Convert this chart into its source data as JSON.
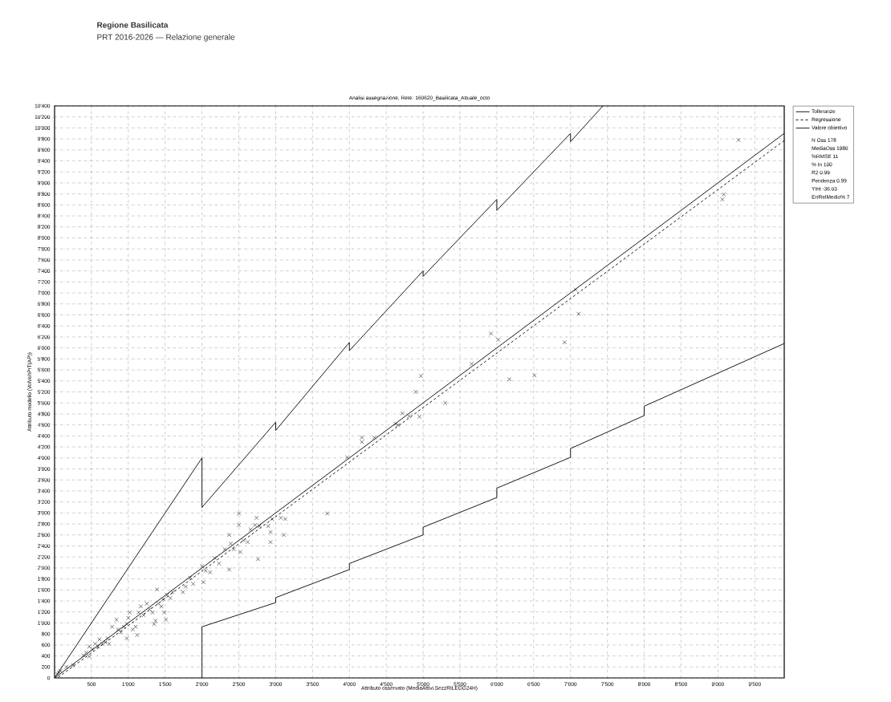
{
  "chart_data": {
    "type": "scatter",
    "title": "Analisi assegnazione, Rete: 160620_Basilicata_Attuale_octo",
    "xlabel": "Attributo osservato (MediaAttivi.SezzRILEGG24H)",
    "ylabel": "Attributo modello (VolVehPrT(AP))",
    "annotations": [
      "Regione Basilicata",
      "PRT 2016-2026 — Relazione generale",
      "N Oss 178",
      "MediaOss 1986",
      "%RMSE 11",
      "% In 100",
      "R2 0.99",
      "Pendenza 0.99",
      "YInt -36.03",
      "ErrRelMedio% 7"
    ],
    "xlim": [
      0,
      9900
    ],
    "ylim": [
      0,
      10400
    ],
    "xticks": [
      500,
      {
        "value": 1000,
        "label": "1'000"
      },
      {
        "value": 1500,
        "label": "1'500"
      },
      {
        "value": 2000,
        "label": "2'000"
      },
      {
        "value": 2500,
        "label": "2'500"
      },
      {
        "value": 3000,
        "label": "3'000"
      },
      {
        "value": 3500,
        "label": "3'500"
      },
      {
        "value": 4000,
        "label": "4'000"
      },
      {
        "value": 4500,
        "label": "4'500"
      },
      {
        "value": 5000,
        "label": "5'000"
      },
      {
        "value": 5500,
        "label": "5'500"
      },
      {
        "value": 6000,
        "label": "6'000"
      },
      {
        "value": 6500,
        "label": "6'500"
      },
      {
        "value": 7000,
        "label": "7'000"
      },
      {
        "value": 7500,
        "label": "7'500"
      },
      {
        "value": 8000,
        "label": "8'000"
      },
      {
        "value": 8500,
        "label": "8'500"
      },
      {
        "value": 9000,
        "label": "9'000"
      },
      {
        "value": 9500,
        "label": "9'500"
      }
    ],
    "yticks": [
      0,
      200,
      400,
      600,
      800,
      {
        "value": 1000,
        "label": "1'000"
      },
      {
        "value": 1200,
        "label": "1'200"
      },
      {
        "value": 1400,
        "label": "1'400"
      },
      {
        "value": 1600,
        "label": "1'600"
      },
      {
        "value": 1800,
        "label": "1'800"
      },
      {
        "value": 2000,
        "label": "2'000"
      },
      {
        "value": 2200,
        "label": "2'200"
      },
      {
        "value": 2400,
        "label": "2'400"
      },
      {
        "value": 2600,
        "label": "2'600"
      },
      {
        "value": 2800,
        "label": "2'800"
      },
      {
        "value": 3000,
        "label": "3'000"
      },
      {
        "value": 3200,
        "label": "3'200"
      },
      {
        "value": 3400,
        "label": "3'400"
      },
      {
        "value": 3600,
        "label": "3'600"
      },
      {
        "value": 3800,
        "label": "3'800"
      },
      {
        "value": 4000,
        "label": "4'000"
      },
      {
        "value": 4200,
        "label": "4'200"
      },
      {
        "value": 4400,
        "label": "4'400"
      },
      {
        "value": 4600,
        "label": "4'600"
      },
      {
        "value": 4800,
        "label": "4'800"
      },
      {
        "value": 5000,
        "label": "5'000"
      },
      {
        "value": 5200,
        "label": "5'200"
      },
      {
        "value": 5400,
        "label": "5'400"
      },
      {
        "value": 5600,
        "label": "5'600"
      },
      {
        "value": 5800,
        "label": "5'800"
      },
      {
        "value": 6000,
        "label": "6'000"
      },
      {
        "value": 6200,
        "label": "6'200"
      },
      {
        "value": 6400,
        "label": "6'400"
      },
      {
        "value": 6600,
        "label": "6'600"
      },
      {
        "value": 6800,
        "label": "6'800"
      },
      {
        "value": 7000,
        "label": "7'000"
      },
      {
        "value": 7200,
        "label": "7'200"
      },
      {
        "value": 7400,
        "label": "7'400"
      },
      {
        "value": 7600,
        "label": "7'600"
      },
      {
        "value": 7800,
        "label": "7'800"
      },
      {
        "value": 8000,
        "label": "8'000"
      },
      {
        "value": 8200,
        "label": "8'200"
      },
      {
        "value": 8400,
        "label": "8'400"
      },
      {
        "value": 8600,
        "label": "8'600"
      },
      {
        "value": 8800,
        "label": "8'800"
      },
      {
        "value": 9000,
        "label": "9'000"
      },
      {
        "value": 9200,
        "label": "9'200"
      },
      {
        "value": 9400,
        "label": "9'400"
      },
      {
        "value": 9600,
        "label": "9'600"
      },
      {
        "value": 9800,
        "label": "9'800"
      },
      {
        "value": 10000,
        "label": "10'000"
      },
      {
        "value": 10200,
        "label": "10'200"
      },
      {
        "value": 10400,
        "label": "10'400"
      }
    ],
    "grid": true,
    "legend": "right",
    "series": [
      {
        "name": "Tolleranze",
        "type": "line",
        "line_style": "solid",
        "color": "#000000",
        "x": [
          0,
          2000,
          2000,
          3000,
          3000,
          4000,
          4000,
          5000,
          5000,
          6000,
          6000,
          7000,
          7000,
          7440,
          null,
          2000,
          2000,
          3000,
          3000,
          4000,
          4000,
          5000,
          5000,
          6000,
          6000,
          7000,
          7000,
          8000,
          8000,
          9900
        ],
        "values": [
          0,
          4000,
          3100,
          4650,
          4500,
          6100,
          5950,
          7400,
          7300,
          8700,
          8500,
          9900,
          9750,
          10400,
          null,
          0,
          930,
          1370,
          1460,
          1970,
          2080,
          2600,
          2740,
          3280,
          3450,
          4010,
          4170,
          4770,
          4940,
          6080
        ]
      },
      {
        "name": "Regressione",
        "type": "line",
        "line_style": "dashed",
        "color": "#000000",
        "x": [
          50,
          9900
        ],
        "values": [
          10,
          9770
        ]
      },
      {
        "name": "Valore obiettivo",
        "type": "line",
        "line_style": "solid",
        "color": "#000000",
        "x": [
          0,
          9900
        ],
        "values": [
          0,
          9900
        ]
      },
      {
        "type": "scatter",
        "marker": "cross",
        "color": "#222222",
        "x": [
          60,
          80,
          40,
          160,
          250,
          390,
          430,
          470,
          510,
          470,
          550,
          610,
          650,
          590,
          740,
          720,
          690,
          780,
          840,
          860,
          900,
          940,
          980,
          1000,
          1020,
          980,
          1060,
          1100,
          1120,
          1140,
          1170,
          1210,
          1250,
          1290,
          1330,
          1370,
          1350,
          1390,
          1410,
          1450,
          1490,
          1510,
          1470,
          1530,
          1600,
          1570,
          1740,
          1780,
          1840,
          1880,
          2000,
          2020,
          2050,
          2110,
          2170,
          2230,
          2310,
          2370,
          2390,
          2370,
          2430,
          2500,
          2500,
          2520,
          2560,
          2620,
          2660,
          2720,
          2740,
          2760,
          2780,
          2900,
          2930,
          2930,
          2950,
          3070,
          3130,
          3110,
          3700,
          3970,
          4170,
          4170,
          4340,
          4630,
          4660,
          4720,
          4810,
          4950,
          5300,
          5920,
          6020,
          6920,
          5660,
          4970,
          6170,
          6510,
          4900,
          9280,
          9080,
          9060,
          7070,
          7110
        ],
        "values": [
          100,
          130,
          70,
          200,
          230,
          410,
          460,
          390,
          520,
          570,
          620,
          700,
          620,
          570,
          620,
          720,
          650,
          930,
          1060,
          880,
          830,
          930,
          980,
          1090,
          1190,
          720,
          880,
          930,
          780,
          1190,
          1300,
          1140,
          1350,
          1250,
          1190,
          1040,
          980,
          1610,
          1350,
          1300,
          1190,
          1060,
          1430,
          1510,
          1560,
          1450,
          1560,
          1660,
          1820,
          1710,
          2030,
          1740,
          1950,
          1920,
          2180,
          2080,
          2340,
          2600,
          2440,
          1970,
          2340,
          2990,
          2780,
          2290,
          2500,
          2470,
          2700,
          2780,
          2910,
          2160,
          2760,
          2760,
          2650,
          2470,
          2890,
          2910,
          2890,
          2600,
          2990,
          4010,
          4370,
          4290,
          4370,
          4620,
          4600,
          4810,
          4760,
          4750,
          5000,
          6260,
          6150,
          6100,
          5710,
          5490,
          5430,
          5500,
          5200,
          9780,
          8790,
          8700,
          7060,
          6620
        ]
      }
    ]
  }
}
